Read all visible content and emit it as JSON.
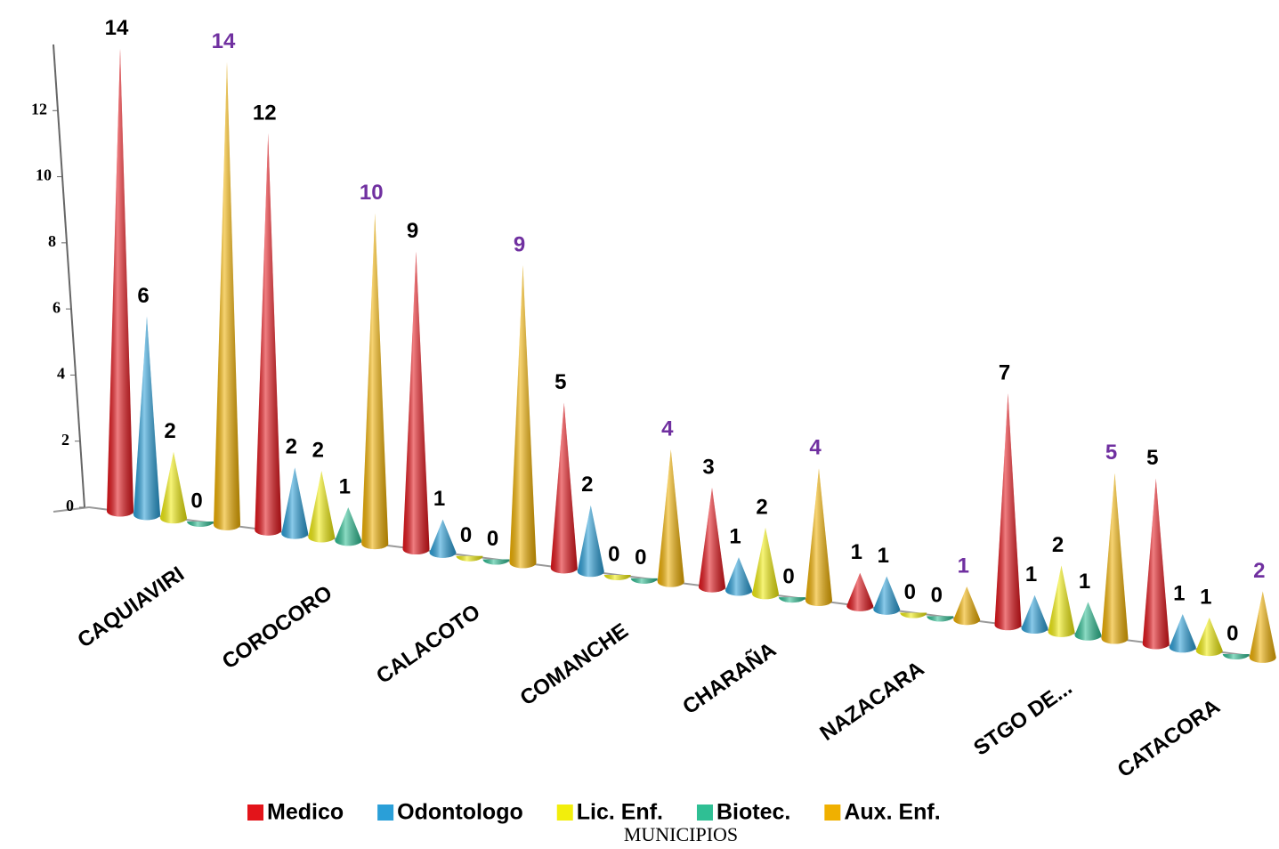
{
  "chart_data": {
    "type": "cone",
    "x_label": "MUNICIPIOS",
    "categories": [
      "CAQUIAVIRI",
      "COROCORO",
      "CALACOTO",
      "COMANCHE",
      "CHARAÑA",
      "NAZACARA",
      "STGO DE...",
      "CATACORA"
    ],
    "series": [
      {
        "name": "Medico",
        "color": "#e3141a",
        "label_color": "#000000",
        "values": [
          14,
          12,
          9,
          5,
          3,
          1,
          7,
          5
        ]
      },
      {
        "name": "Odontologo",
        "color": "#2a9fd8",
        "label_color": "#000000",
        "values": [
          6,
          2,
          1,
          2,
          1,
          1,
          1,
          1
        ]
      },
      {
        "name": "Lic. Enf.",
        "color": "#f2ee0c",
        "label_color": "#000000",
        "values": [
          2,
          2,
          0,
          0,
          2,
          0,
          2,
          1
        ]
      },
      {
        "name": "Biotec.",
        "color": "#2fbf94",
        "label_color": "#000000",
        "values": [
          0,
          1,
          0,
          0,
          0,
          0,
          1,
          0
        ]
      },
      {
        "name": "Aux. Enf.",
        "color": "#f0b000",
        "label_color": "#7030a0",
        "values": [
          14,
          10,
          9,
          4,
          4,
          1,
          5,
          2
        ]
      }
    ],
    "ylim": [
      0,
      14
    ],
    "yticks": [
      0,
      2,
      4,
      6,
      8,
      10,
      12
    ],
    "legend": "bottom"
  }
}
